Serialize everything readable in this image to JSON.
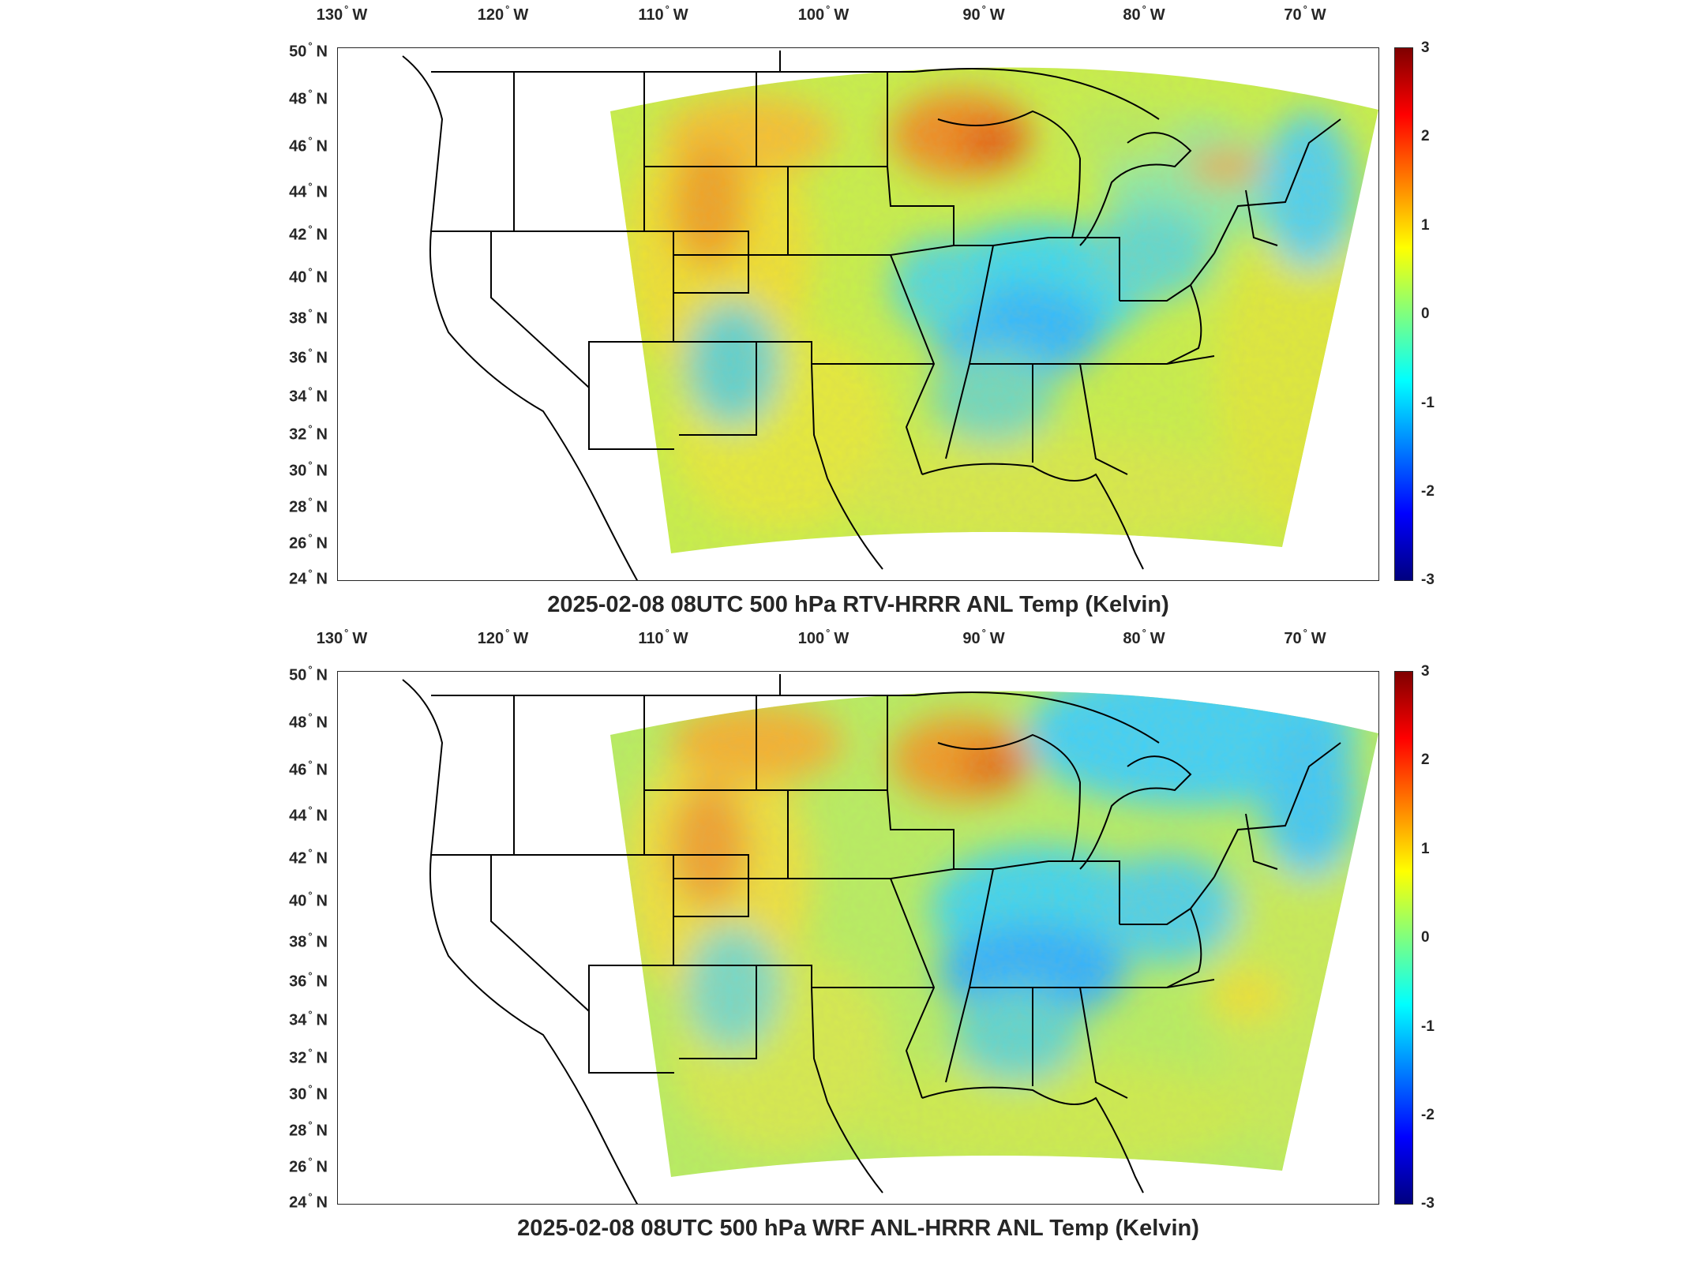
{
  "panels": [
    {
      "title": "2025-02-08 08UTC 500 hPa RTV-HRRR ANL Temp (Kelvin)",
      "lon_labels": [
        {
          "deg": "130",
          "hem": "W"
        },
        {
          "deg": "120",
          "hem": "W"
        },
        {
          "deg": "110",
          "hem": "W"
        },
        {
          "deg": "100",
          "hem": "W"
        },
        {
          "deg": "90",
          "hem": "W"
        },
        {
          "deg": "80",
          "hem": "W"
        },
        {
          "deg": "70",
          "hem": "W"
        }
      ],
      "lat_labels": [
        {
          "deg": "50",
          "hem": "N"
        },
        {
          "deg": "48",
          "hem": "N"
        },
        {
          "deg": "46",
          "hem": "N"
        },
        {
          "deg": "44",
          "hem": "N"
        },
        {
          "deg": "42",
          "hem": "N"
        },
        {
          "deg": "40",
          "hem": "N"
        },
        {
          "deg": "38",
          "hem": "N"
        },
        {
          "deg": "36",
          "hem": "N"
        },
        {
          "deg": "34",
          "hem": "N"
        },
        {
          "deg": "32",
          "hem": "N"
        },
        {
          "deg": "30",
          "hem": "N"
        },
        {
          "deg": "28",
          "hem": "N"
        },
        {
          "deg": "26",
          "hem": "N"
        },
        {
          "deg": "24",
          "hem": "N"
        }
      ],
      "colorbar_ticks": [
        "3",
        "2",
        "1",
        "0",
        "-1",
        "-2",
        "-3"
      ],
      "colorbar_range": [
        -3,
        3
      ],
      "features": {
        "warm_anomalies": [
          "northern Wisconsin / Lake Superior",
          "Wyoming / Colorado Rockies",
          "northern High Plains"
        ],
        "cool_anomalies": [
          "Ohio Valley",
          "Tennessee / Kentucky",
          "New England coast"
        ]
      }
    },
    {
      "title": "2025-02-08 08UTC 500 hPa WRF ANL-HRRR ANL Temp (Kelvin)",
      "lon_labels": [
        {
          "deg": "130",
          "hem": "W"
        },
        {
          "deg": "120",
          "hem": "W"
        },
        {
          "deg": "110",
          "hem": "W"
        },
        {
          "deg": "100",
          "hem": "W"
        },
        {
          "deg": "90",
          "hem": "W"
        },
        {
          "deg": "80",
          "hem": "W"
        },
        {
          "deg": "70",
          "hem": "W"
        }
      ],
      "lat_labels": [
        {
          "deg": "50",
          "hem": "N"
        },
        {
          "deg": "48",
          "hem": "N"
        },
        {
          "deg": "46",
          "hem": "N"
        },
        {
          "deg": "44",
          "hem": "N"
        },
        {
          "deg": "42",
          "hem": "N"
        },
        {
          "deg": "40",
          "hem": "N"
        },
        {
          "deg": "38",
          "hem": "N"
        },
        {
          "deg": "36",
          "hem": "N"
        },
        {
          "deg": "34",
          "hem": "N"
        },
        {
          "deg": "32",
          "hem": "N"
        },
        {
          "deg": "30",
          "hem": "N"
        },
        {
          "deg": "28",
          "hem": "N"
        },
        {
          "deg": "26",
          "hem": "N"
        },
        {
          "deg": "24",
          "hem": "N"
        }
      ],
      "colorbar_ticks": [
        "3",
        "2",
        "1",
        "0",
        "-1",
        "-2",
        "-3"
      ],
      "colorbar_range": [
        -3,
        3
      ],
      "features": {
        "warm_anomalies": [
          "northern Wisconsin / Lake Superior",
          "Wyoming / Colorado Rockies",
          "northern High Plains"
        ],
        "cool_anomalies": [
          "Ohio Valley",
          "Tennessee / Kentucky",
          "southern Ontario / Quebec"
        ]
      }
    }
  ]
}
